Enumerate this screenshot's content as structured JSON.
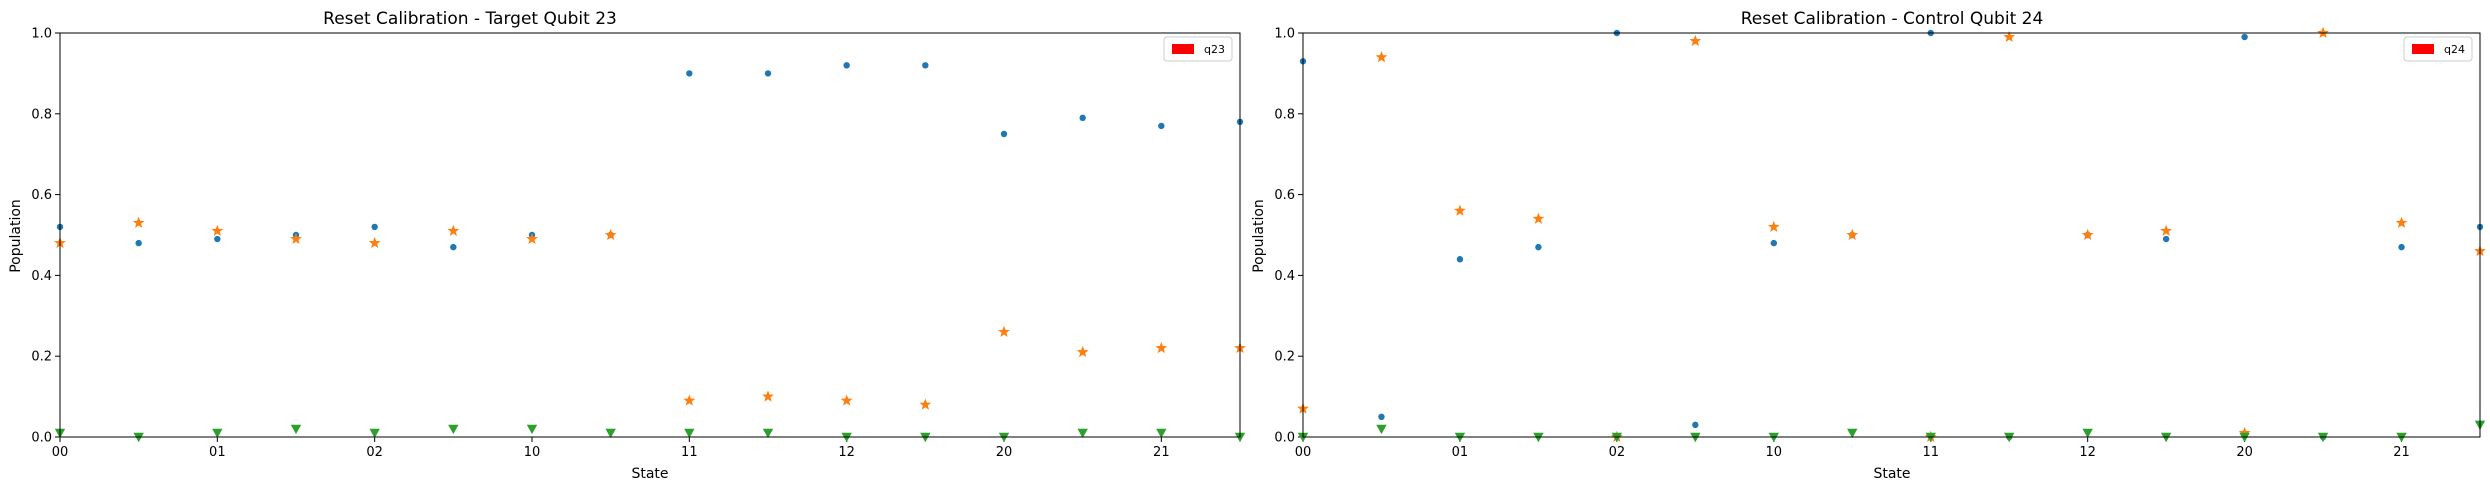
{
  "colors": {
    "series_0": "#1f77b4",
    "series_1": "#ff7f0e",
    "series_2": "#2ca02c",
    "legend_patch": "#ff0000"
  },
  "chart_data": [
    {
      "type": "scatter",
      "title": "Reset Calibration - Target Qubit 23",
      "xlabel": "State",
      "ylabel": "Population",
      "categories": [
        "00",
        "01",
        "02",
        "10",
        "11",
        "12",
        "20",
        "21"
      ],
      "xlim": [
        0,
        7.5
      ],
      "ylim": [
        0,
        1.0
      ],
      "yticks": [
        "0.0",
        "0.2",
        "0.4",
        "0.6",
        "0.8",
        "1.0"
      ],
      "grid": false,
      "legend": {
        "position": "top-right",
        "entries": [
          "q23"
        ]
      },
      "x": [
        0,
        0.5,
        1,
        1.5,
        2,
        2.5,
        3,
        3.5,
        4,
        4.5,
        5,
        5.5,
        6,
        6.5,
        7,
        7.5
      ],
      "series": [
        {
          "marker": "circle",
          "values": [
            0.52,
            0.48,
            0.49,
            0.5,
            0.52,
            0.47,
            0.5,
            0.5,
            0.9,
            0.9,
            0.92,
            0.92,
            0.75,
            0.79,
            0.77,
            0.78
          ]
        },
        {
          "marker": "star",
          "values": [
            0.48,
            0.53,
            0.51,
            0.49,
            0.48,
            0.51,
            0.49,
            0.5,
            0.09,
            0.1,
            0.09,
            0.08,
            0.26,
            0.21,
            0.22,
            0.22
          ]
        },
        {
          "marker": "triangle-down",
          "values": [
            0.01,
            0.0,
            0.01,
            0.02,
            0.01,
            0.02,
            0.02,
            0.01,
            0.01,
            0.01,
            0.0,
            0.0,
            0.0,
            0.01,
            0.01,
            0.0
          ]
        }
      ]
    },
    {
      "type": "scatter",
      "title": "Reset Calibration - Control Qubit 24",
      "xlabel": "State",
      "ylabel": "Population",
      "categories": [
        "00",
        "01",
        "02",
        "10",
        "11",
        "12",
        "20",
        "21"
      ],
      "xlim": [
        0,
        7.5
      ],
      "ylim": [
        0,
        1.0
      ],
      "yticks": [
        "0.0",
        "0.2",
        "0.4",
        "0.6",
        "0.8",
        "1.0"
      ],
      "grid": false,
      "legend": {
        "position": "top-right",
        "entries": [
          "q24"
        ]
      },
      "x": [
        0,
        0.5,
        1,
        1.5,
        2,
        2.5,
        3,
        3.5,
        4,
        4.5,
        5,
        5.5,
        6,
        6.5,
        7,
        7.5
      ],
      "series": [
        {
          "marker": "circle",
          "values": [
            0.93,
            0.05,
            0.44,
            0.47,
            1.0,
            0.03,
            0.48,
            0.5,
            1.0,
            0.0,
            0.5,
            0.49,
            0.99,
            0.0,
            0.47,
            0.52
          ]
        },
        {
          "marker": "star",
          "values": [
            0.07,
            0.94,
            0.56,
            0.54,
            0.0,
            0.98,
            0.52,
            0.5,
            0.0,
            0.99,
            0.5,
            0.51,
            0.01,
            1.0,
            0.53,
            0.46
          ]
        },
        {
          "marker": "triangle-down",
          "values": [
            0.0,
            0.02,
            0.0,
            0.0,
            0.0,
            0.0,
            0.0,
            0.01,
            0.0,
            0.0,
            0.01,
            0.0,
            0.0,
            0.0,
            0.0,
            0.03
          ]
        }
      ]
    }
  ]
}
